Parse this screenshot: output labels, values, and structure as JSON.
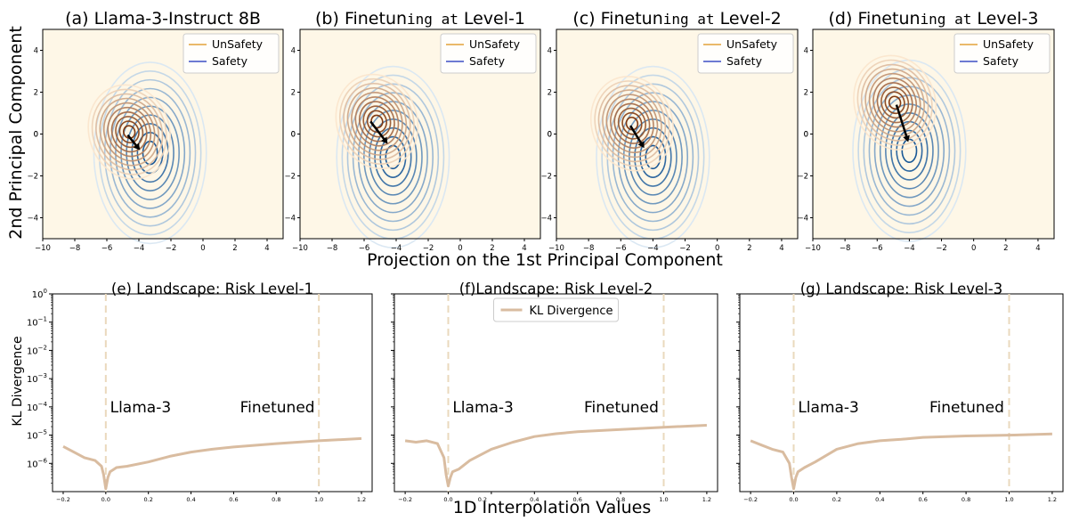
{
  "figure": {
    "top_xlabel": "Projection on the 1st Principal Component",
    "top_ylabel": "2nd Principal Component",
    "bottom_xlabel": "1D Interpolation Values",
    "bottom_ylabel": "KL Divergence"
  },
  "colors": {
    "unsafety": "#e3a23a",
    "safety": "#3d4fc4",
    "background": "#fef7e7",
    "kl_line": "#d9bca0",
    "vline": "#ead9bd"
  },
  "chart_data": [
    {
      "type": "contour",
      "title_pre": "(a) Llama-3-Instruct 8B",
      "title_mono": "",
      "title_post": "",
      "xlim": [
        -10,
        5
      ],
      "ylim": [
        -5,
        5
      ],
      "xticks": [
        -10,
        -8,
        -6,
        -4,
        -2,
        0,
        2,
        4
      ],
      "yticks": [
        -4,
        -2,
        0,
        2,
        4
      ],
      "legend": [
        "UnSafety",
        "Safety"
      ],
      "legend_position": "upper right",
      "unsafety_center": [
        -4.6,
        0.1
      ],
      "safety_center": [
        -3.3,
        -0.9
      ],
      "arrow": {
        "from": [
          -4.7,
          -0.05
        ],
        "to": [
          -4.0,
          -0.7
        ]
      }
    },
    {
      "type": "contour",
      "title_pre": "(b) Finetun",
      "title_mono": "ing at",
      "title_post": " Level-1",
      "xlim": [
        -10,
        5
      ],
      "ylim": [
        -5,
        5
      ],
      "xticks": [
        -10,
        -8,
        -6,
        -4,
        -2,
        0,
        2,
        4
      ],
      "yticks": [
        -4,
        -2,
        0,
        2,
        4
      ],
      "legend": [
        "UnSafety",
        "Safety"
      ],
      "legend_position": "upper right",
      "unsafety_center": [
        -5.2,
        0.6
      ],
      "safety_center": [
        -4.2,
        -1.1
      ],
      "arrow": {
        "from": [
          -5.6,
          0.6
        ],
        "to": [
          -4.6,
          -0.4
        ]
      }
    },
    {
      "type": "contour",
      "title_pre": "(c) Finetun",
      "title_mono": "ing at",
      "title_post": " Level-2",
      "xlim": [
        -10,
        5
      ],
      "ylim": [
        -5,
        5
      ],
      "xticks": [
        -10,
        -8,
        -6,
        -4,
        -2,
        0,
        2,
        4
      ],
      "yticks": [
        -4,
        -2,
        0,
        2,
        4
      ],
      "legend": [
        "UnSafety",
        "Safety"
      ],
      "legend_position": "upper right",
      "unsafety_center": [
        -5.3,
        0.5
      ],
      "safety_center": [
        -4.0,
        -1.1
      ],
      "arrow": {
        "from": [
          -5.4,
          0.4
        ],
        "to": [
          -4.6,
          -0.6
        ]
      }
    },
    {
      "type": "contour",
      "title_pre": "(d) Finetun",
      "title_mono": "ing at",
      "title_post": " Level-3",
      "xlim": [
        -10,
        5
      ],
      "ylim": [
        -5,
        5
      ],
      "xticks": [
        -10,
        -8,
        -6,
        -4,
        -2,
        0,
        2,
        4
      ],
      "yticks": [
        -4,
        -2,
        0,
        2,
        4
      ],
      "legend": [
        "UnSafety",
        "Safety"
      ],
      "legend_position": "upper right",
      "unsafety_center": [
        -4.9,
        1.5
      ],
      "safety_center": [
        -4.0,
        -0.8
      ],
      "arrow": {
        "from": [
          -4.8,
          1.4
        ],
        "to": [
          -4.1,
          -0.3
        ]
      }
    },
    {
      "type": "line",
      "title": "(e) Landscape: Risk Level-1",
      "yscale": "log",
      "ylim_exp": [
        -7,
        0
      ],
      "xlim": [
        -0.25,
        1.25
      ],
      "xticks": [
        -0.2,
        0.0,
        0.2,
        0.4,
        0.6,
        0.8,
        1.0,
        1.2
      ],
      "ytick_exps": [
        0,
        -1,
        -2,
        -3,
        -4,
        -5,
        -6
      ],
      "vlines": [
        0.0,
        1.0
      ],
      "annotations": [
        {
          "text": "Llama-3",
          "x": 0.02,
          "yexp": -4.0
        },
        {
          "text": "Finetuned",
          "x": 0.63,
          "yexp": -4.0
        }
      ],
      "legend": [],
      "series": [
        {
          "x": [
            -0.2,
            -0.15,
            -0.1,
            -0.05,
            -0.02,
            -0.01,
            0.0,
            0.01,
            0.02,
            0.05,
            0.1,
            0.2,
            0.3,
            0.4,
            0.5,
            0.6,
            0.8,
            1.0,
            1.2
          ],
          "yexp": [
            -5.4,
            -5.6,
            -5.8,
            -5.9,
            -6.1,
            -6.4,
            -6.9,
            -6.5,
            -6.3,
            -6.15,
            -6.1,
            -5.95,
            -5.75,
            -5.6,
            -5.5,
            -5.42,
            -5.3,
            -5.2,
            -5.12
          ]
        }
      ]
    },
    {
      "type": "line",
      "title": "(f)Landscape: Risk Level-2",
      "yscale": "log",
      "ylim_exp": [
        -7,
        0
      ],
      "xlim": [
        -0.25,
        1.25
      ],
      "xticks": [
        -0.2,
        0.0,
        0.2,
        0.4,
        0.6,
        0.8,
        1.0,
        1.2
      ],
      "ytick_exps": [],
      "tick_offsets": {
        "0.2": 0.05
      },
      "vlines": [
        0.0,
        1.0
      ],
      "annotations": [
        {
          "text": "Llama-3",
          "x": 0.02,
          "yexp": -4.0
        },
        {
          "text": "Finetuned",
          "x": 0.63,
          "yexp": -4.0
        }
      ],
      "legend": [
        "KL Divergence"
      ],
      "legend_position": "upper center",
      "series": [
        {
          "name": "KL Divergence",
          "x": [
            -0.2,
            -0.15,
            -0.1,
            -0.05,
            -0.02,
            -0.01,
            0.0,
            0.01,
            0.02,
            0.05,
            0.1,
            0.2,
            0.3,
            0.4,
            0.5,
            0.6,
            0.8,
            1.0,
            1.2
          ],
          "yexp": [
            -5.2,
            -5.25,
            -5.2,
            -5.3,
            -5.8,
            -6.4,
            -6.8,
            -6.5,
            -6.3,
            -6.2,
            -5.9,
            -5.5,
            -5.25,
            -5.05,
            -4.95,
            -4.88,
            -4.8,
            -4.72,
            -4.65
          ]
        }
      ]
    },
    {
      "type": "line",
      "title": "(g) Landscape: Risk Level-3",
      "yscale": "log",
      "ylim_exp": [
        -7,
        0
      ],
      "xlim": [
        -0.25,
        1.25
      ],
      "xticks": [
        -0.2,
        0.0,
        0.2,
        0.4,
        0.6,
        0.8,
        1.0,
        1.2
      ],
      "ytick_exps": [],
      "vlines": [
        0.0,
        1.0
      ],
      "annotations": [
        {
          "text": "Llama-3",
          "x": 0.02,
          "yexp": -4.0
        },
        {
          "text": "Finetuned",
          "x": 0.63,
          "yexp": -4.0
        }
      ],
      "legend": [],
      "series": [
        {
          "x": [
            -0.2,
            -0.15,
            -0.1,
            -0.05,
            -0.02,
            -0.01,
            0.0,
            0.01,
            0.02,
            0.05,
            0.1,
            0.2,
            0.3,
            0.4,
            0.5,
            0.6,
            0.8,
            1.0,
            1.2
          ],
          "yexp": [
            -5.2,
            -5.35,
            -5.5,
            -5.6,
            -6.0,
            -6.5,
            -6.9,
            -6.5,
            -6.3,
            -6.15,
            -5.95,
            -5.5,
            -5.3,
            -5.2,
            -5.15,
            -5.08,
            -5.03,
            -5.0,
            -4.96
          ]
        }
      ]
    }
  ]
}
